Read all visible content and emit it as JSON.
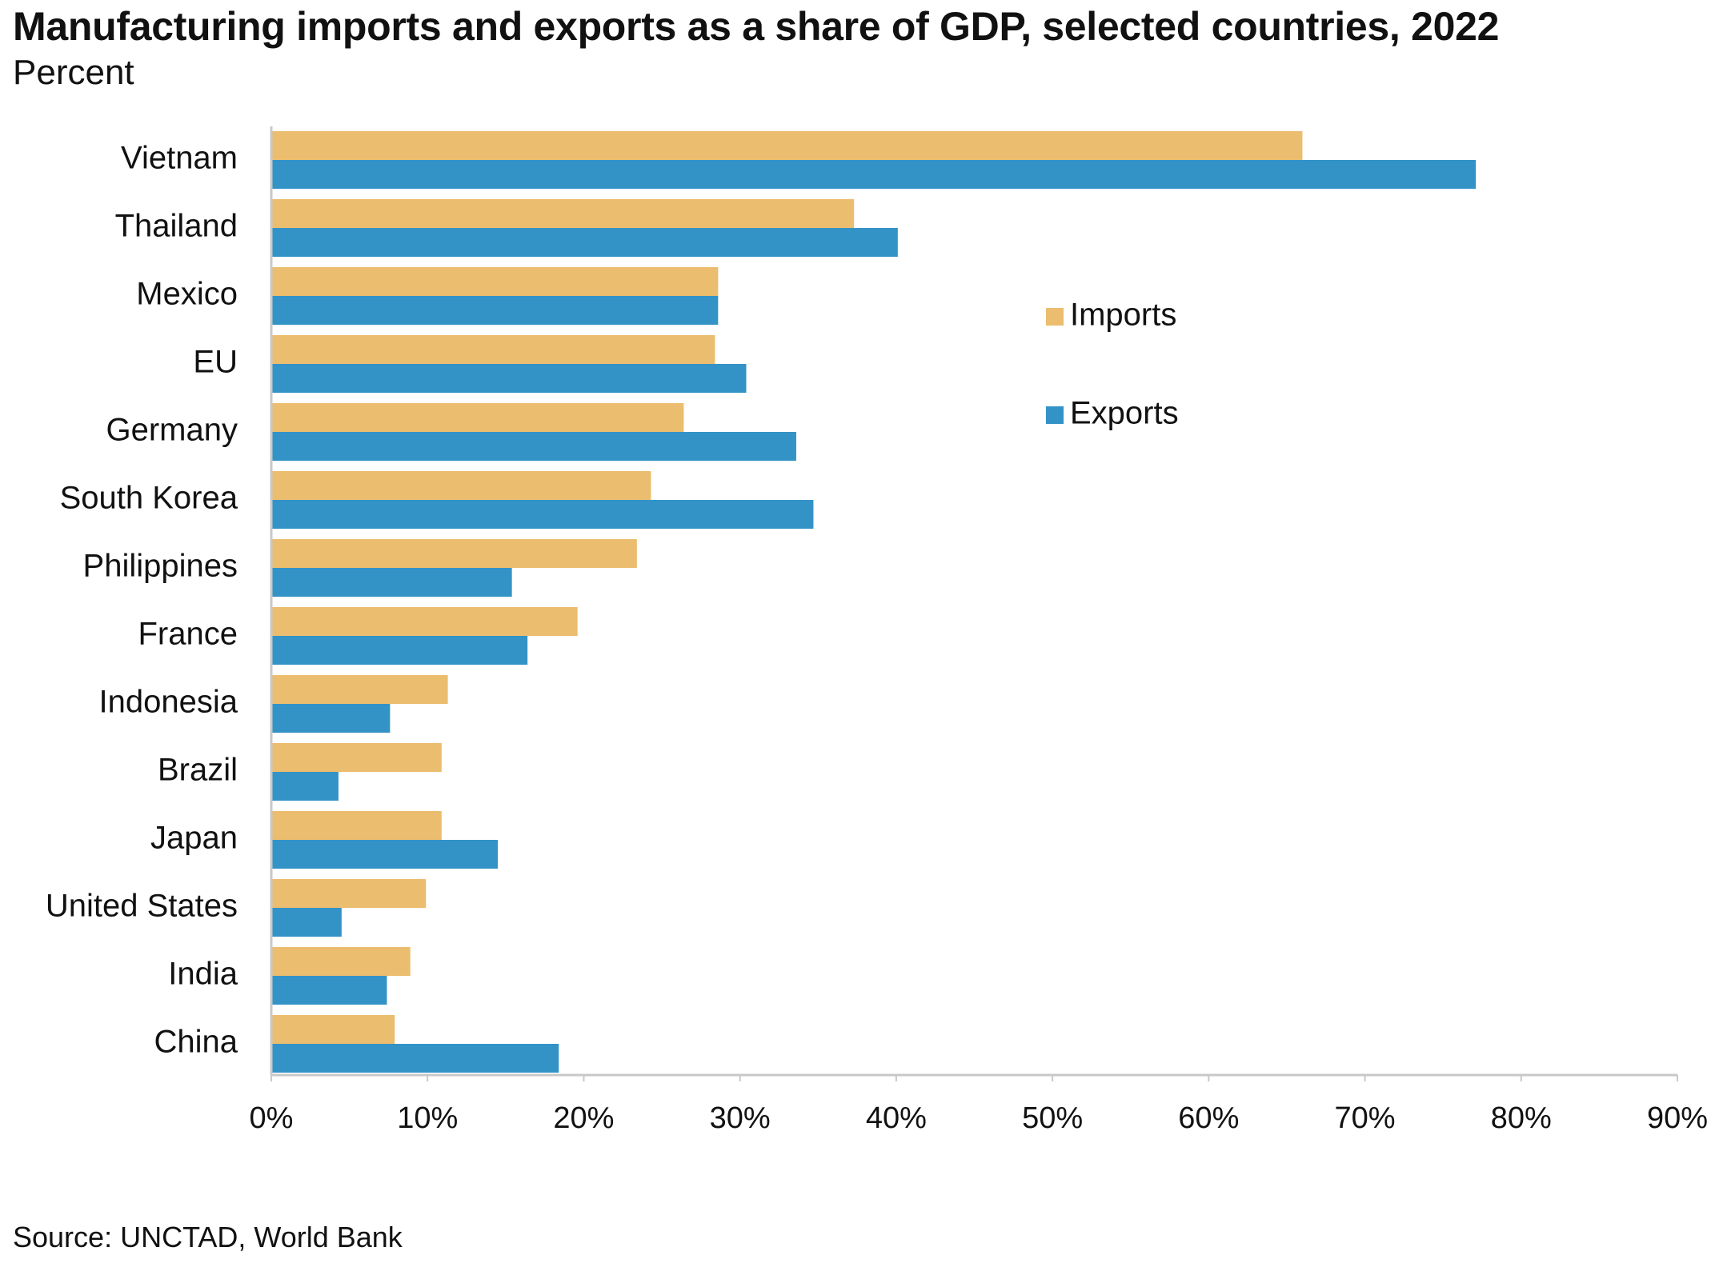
{
  "source": "Source: UNCTAD, World Bank",
  "colors": {
    "imports": "#EBBD6E",
    "exports": "#3393C7",
    "axis": "#C8C8C8",
    "text": "#111111"
  },
  "chart_data": {
    "type": "bar",
    "orientation": "horizontal",
    "title": "Manufacturing imports and exports as a share of GDP, selected countries, 2022",
    "subtitle": "Percent",
    "xlabel": "",
    "ylabel": "",
    "categories": [
      "Vietnam",
      "Thailand",
      "Mexico",
      "EU",
      "Germany",
      "South Korea",
      "Philippines",
      "France",
      "Indonesia",
      "Brazil",
      "Japan",
      "United States",
      "India",
      "China"
    ],
    "series": [
      {
        "name": "Imports",
        "color": "#EBBD6E",
        "values": [
          66,
          37.3,
          28.6,
          28.4,
          26.4,
          24.3,
          23.4,
          19.6,
          11.3,
          10.9,
          10.9,
          9.9,
          8.9,
          7.9
        ]
      },
      {
        "name": "Exports",
        "color": "#3393C7",
        "values": [
          77.1,
          40.1,
          28.6,
          30.4,
          33.6,
          34.7,
          15.4,
          16.4,
          7.6,
          4.3,
          14.5,
          4.5,
          7.4,
          18.4
        ]
      }
    ],
    "xlim": [
      0,
      90
    ],
    "xticks": [
      0,
      10,
      20,
      30,
      40,
      50,
      60,
      70,
      80,
      90
    ],
    "xtick_labels": [
      "0%",
      "10%",
      "20%",
      "30%",
      "40%",
      "50%",
      "60%",
      "70%",
      "80%",
      "90%"
    ],
    "grid": false,
    "legend_position": "upper-center-right"
  }
}
